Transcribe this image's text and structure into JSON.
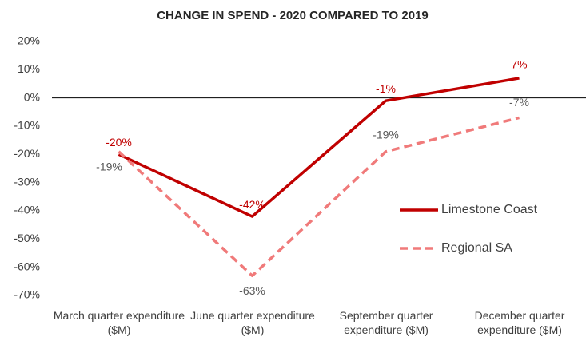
{
  "chart_data": {
    "type": "line",
    "title": "CHANGE IN SPEND - 2020 COMPARED TO 2019",
    "categories": [
      "March quarter expenditure ($M)",
      "June quarter expenditure ($M)",
      "September quarter expenditure ($M)",
      "December quarter expenditure ($M)"
    ],
    "series": [
      {
        "name": "Limestone Coast",
        "color": "#c00000",
        "label_color": "#c00000",
        "dash": "solid",
        "values": [
          -20,
          -42,
          -1,
          7
        ],
        "value_labels": [
          "-20%",
          "-42%",
          "-1%",
          "7%"
        ]
      },
      {
        "name": "Regional SA",
        "color": "#f07a7a",
        "label_color": "#595959",
        "dash": "dashed",
        "values": [
          -19,
          -63,
          -19,
          -7
        ],
        "value_labels": [
          "-19%",
          "-63%",
          "-19%",
          "-7%"
        ]
      }
    ],
    "ylim": [
      -70,
      20
    ],
    "yticks": [
      {
        "value": -70,
        "label": "-70%"
      },
      {
        "value": -60,
        "label": "-60%"
      },
      {
        "value": -50,
        "label": "-50%"
      },
      {
        "value": -40,
        "label": "-40%"
      },
      {
        "value": -30,
        "label": "-30%"
      },
      {
        "value": -20,
        "label": "-20%"
      },
      {
        "value": -10,
        "label": "-10%"
      },
      {
        "value": 0,
        "label": "0%"
      },
      {
        "value": 10,
        "label": "10%"
      },
      {
        "value": 20,
        "label": "20%"
      }
    ],
    "grid": false,
    "legend": "right"
  }
}
